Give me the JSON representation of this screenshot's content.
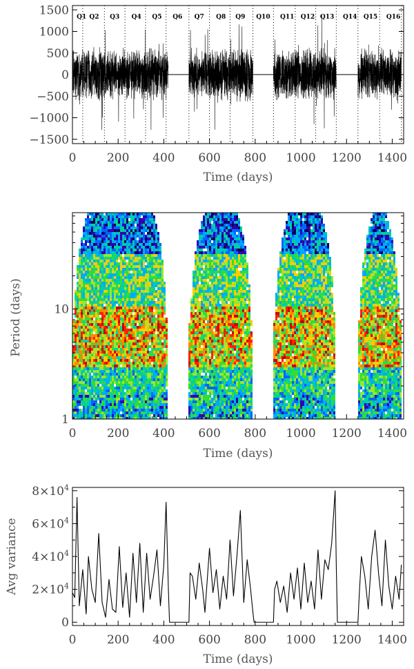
{
  "chart_data": [
    {
      "type": "line",
      "panel": "flux",
      "xlabel": "Time (days)",
      "ylabel": "",
      "xlim": [
        0,
        1450
      ],
      "ylim": [
        -1600,
        1600
      ],
      "x_ticks": [
        "0",
        "200",
        "400",
        "600",
        "800",
        "1000",
        "1200",
        "1400"
      ],
      "y_ticks": [
        "1500",
        "1000",
        "500",
        "0",
        "−500",
        "−1000",
        "−1500"
      ],
      "quarters": [
        {
          "label": "Q1",
          "x": 40
        },
        {
          "label": "Q2",
          "x": 95
        },
        {
          "label": "Q3",
          "x": 185
        },
        {
          "label": "Q4",
          "x": 280
        },
        {
          "label": "Q5",
          "x": 370
        },
        {
          "label": "Q6",
          "x": 460
        },
        {
          "label": "Q7",
          "x": 555
        },
        {
          "label": "Q8",
          "x": 650
        },
        {
          "label": "Q9",
          "x": 735
        },
        {
          "label": "Q10",
          "x": 835
        },
        {
          "label": "Q11",
          "x": 940
        },
        {
          "label": "Q12",
          "x": 1030
        },
        {
          "label": "Q13",
          "x": 1115
        },
        {
          "label": "Q14",
          "x": 1215
        },
        {
          "label": "Q15",
          "x": 1305
        },
        {
          "label": "Q16",
          "x": 1405
        }
      ],
      "quarter_boundaries": [
        45,
        140,
        230,
        320,
        410,
        510,
        600,
        690,
        790,
        880,
        975,
        1065,
        1155,
        1250,
        1345,
        1440
      ],
      "data_segments": [
        [
          0,
          420
        ],
        [
          510,
          790
        ],
        [
          880,
          1155
        ],
        [
          1250,
          1440
        ]
      ],
      "amplitude_typical": 500,
      "amplitude_peak": 1400
    },
    {
      "type": "heatmap",
      "panel": "wavelet-power",
      "xlabel": "Time (days)",
      "ylabel": "Period (days)",
      "xlim": [
        0,
        1450
      ],
      "ylim": [
        1,
        75
      ],
      "yscale": "log",
      "x_ticks": [
        "0",
        "200",
        "400",
        "600",
        "800",
        "1000",
        "1200",
        "1400"
      ],
      "y_ticks": [
        "1",
        "10"
      ],
      "colormap": [
        "#ffffff",
        "#000060",
        "#3300aa",
        "#0066ff",
        "#00aaff",
        "#00d0a0",
        "#33dd33",
        "#99e633",
        "#ffcc00",
        "#ff8800",
        "#ff2200",
        "#cc0000"
      ],
      "data_segments": [
        [
          0,
          420
        ],
        [
          510,
          790
        ],
        [
          880,
          1155
        ],
        [
          1250,
          1440
        ]
      ]
    },
    {
      "type": "line",
      "panel": "average-variance",
      "xlabel": "Time (days)",
      "ylabel": "Avg variance",
      "xlim": [
        0,
        1450
      ],
      "ylim": [
        -2000,
        82000
      ],
      "x_ticks": [
        "0",
        "200",
        "400",
        "600",
        "800",
        "1000",
        "1200",
        "1400"
      ],
      "y_ticks": [
        {
          "mantissa": "0",
          "exp": ""
        },
        {
          "mantissa": "2×10",
          "exp": "4"
        },
        {
          "mantissa": "4×10",
          "exp": "4"
        },
        {
          "mantissa": "6×10",
          "exp": "4"
        },
        {
          "mantissa": "8×10",
          "exp": "4"
        }
      ],
      "x": [
        0,
        10,
        20,
        30,
        45,
        60,
        70,
        85,
        100,
        115,
        130,
        145,
        160,
        175,
        190,
        205,
        220,
        235,
        250,
        265,
        280,
        295,
        310,
        325,
        340,
        355,
        370,
        385,
        400,
        410,
        420,
        425,
        510,
        515,
        525,
        540,
        555,
        570,
        580,
        600,
        615,
        630,
        645,
        660,
        675,
        690,
        705,
        720,
        735,
        750,
        765,
        780,
        790,
        795,
        880,
        885,
        895,
        910,
        925,
        940,
        955,
        970,
        985,
        1000,
        1015,
        1030,
        1045,
        1060,
        1075,
        1090,
        1105,
        1120,
        1135,
        1150,
        1155,
        1160,
        1250,
        1255,
        1265,
        1280,
        1295,
        1310,
        1325,
        1340,
        1355,
        1370,
        1385,
        1400,
        1415,
        1430,
        1440
      ],
      "y": [
        18000,
        15000,
        76000,
        10000,
        32000,
        5000,
        40000,
        20000,
        12000,
        54000,
        12000,
        3000,
        26000,
        8000,
        6000,
        46000,
        9000,
        30000,
        3000,
        42000,
        12000,
        48000,
        6000,
        42000,
        14000,
        28000,
        44000,
        10000,
        35000,
        73000,
        20000,
        0,
        0,
        30000,
        28000,
        14000,
        36000,
        20000,
        6000,
        45000,
        18000,
        32000,
        8000,
        28000,
        14000,
        50000,
        16000,
        40000,
        68000,
        12000,
        38000,
        20000,
        6000,
        0,
        0,
        20000,
        25000,
        12000,
        22000,
        6000,
        30000,
        14000,
        33000,
        8000,
        36000,
        12000,
        25000,
        8000,
        44000,
        14000,
        38000,
        32000,
        48000,
        80000,
        35000,
        0,
        0,
        15000,
        40000,
        28000,
        8000,
        40000,
        56000,
        30000,
        10000,
        50000,
        22000,
        8000,
        28000,
        14000,
        35000
      ]
    }
  ]
}
